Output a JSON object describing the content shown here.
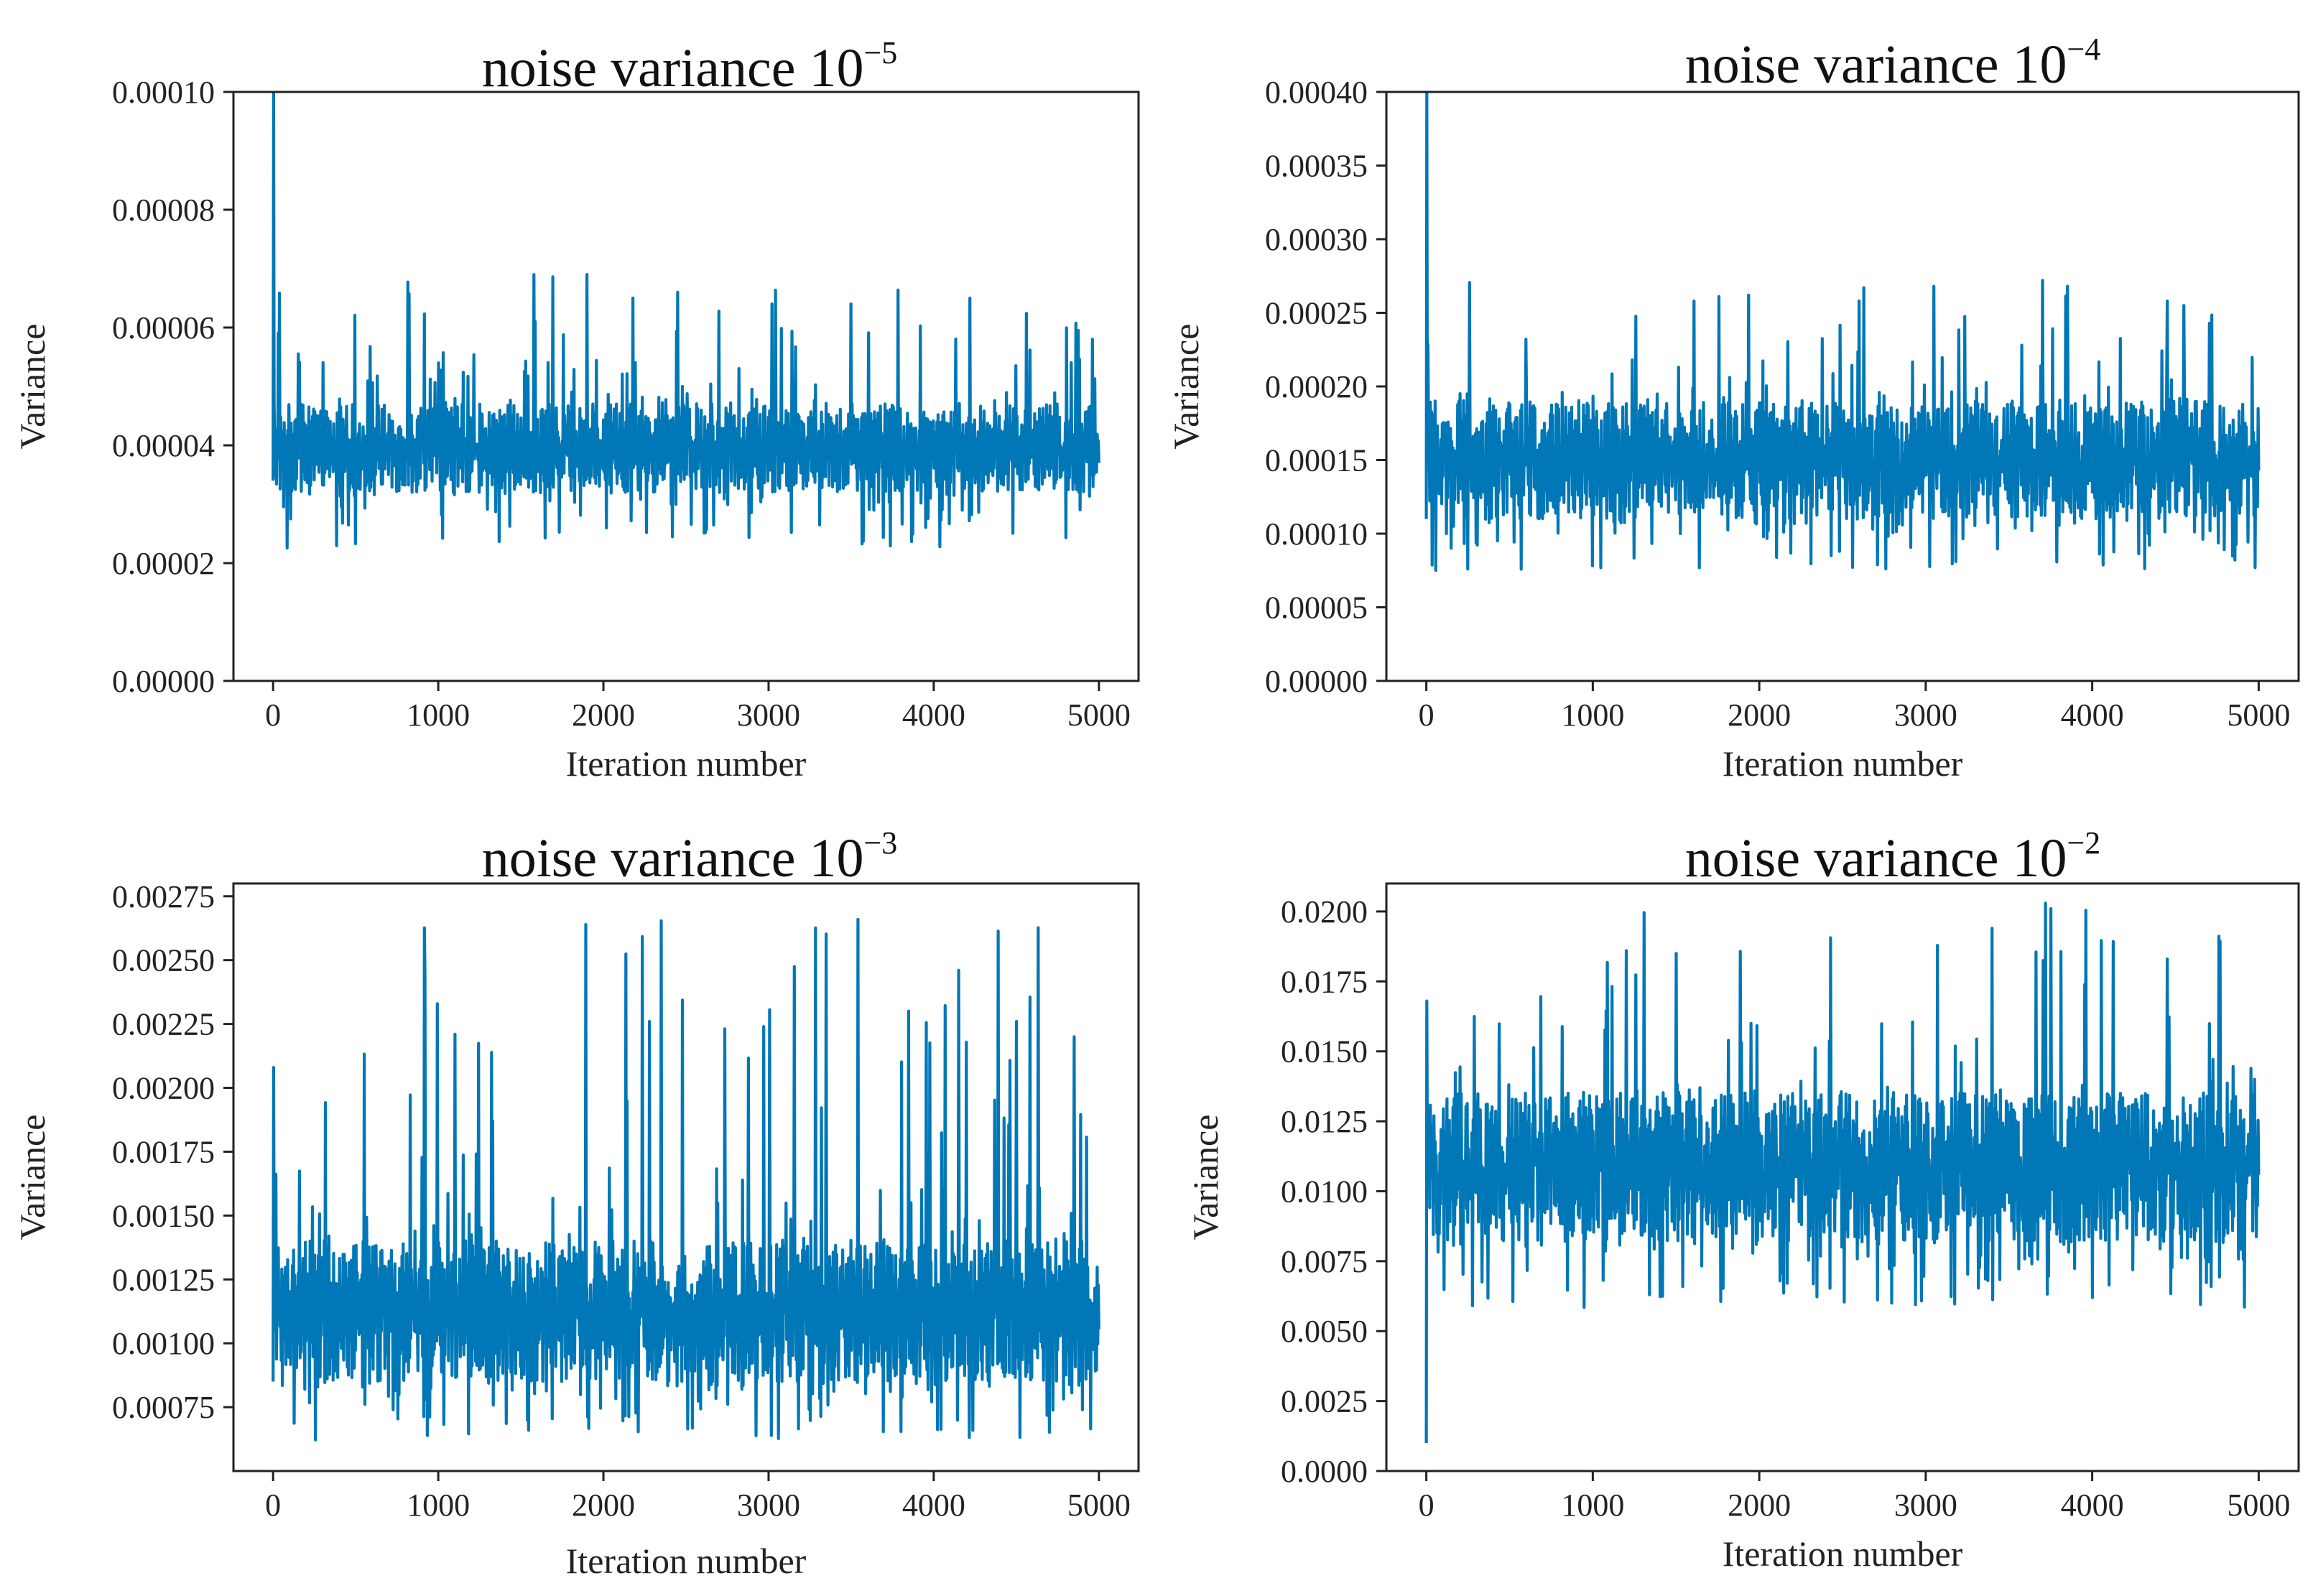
{
  "line_color": "#0077b6",
  "chart_data": [
    {
      "type": "line",
      "title": "noise  variance 10",
      "title_exponent": "−5",
      "xlabel": "Iteration number",
      "ylabel": "Variance",
      "xlim": [
        -240,
        5240
      ],
      "ylim": [
        0,
        0.0001
      ],
      "xticks": [
        0,
        1000,
        2000,
        3000,
        4000,
        5000
      ],
      "xtick_labels": [
        "0",
        "1000",
        "2000",
        "3000",
        "4000",
        "5000"
      ],
      "yticks": [
        0,
        2e-05,
        4e-05,
        6e-05,
        8e-05,
        0.0001
      ],
      "ytick_labels": [
        "0.00000",
        "0.00002",
        "0.00004",
        "0.00006",
        "0.00008",
        "0.00010"
      ],
      "series": [
        {
          "name": "variance",
          "x_range": [
            0,
            5000
          ],
          "initial_values": [
            3.4e-05,
            0.0001,
            4.7e-05
          ],
          "band_low": 3.2e-05,
          "band_high": 4.7e-05,
          "dips_min": 2.25e-05,
          "spike_max": 6.9e-05,
          "spikes": [
            [
              1580,
              6.9e-05
            ],
            [
              1900,
              6.9e-05
            ],
            [
              2180,
              6.5e-05
            ],
            [
              2450,
              6.6e-05
            ],
            [
              3020,
              6.4e-05
            ],
            [
              3500,
              6.4e-05
            ],
            [
              4220,
              6.5e-05
            ],
            [
              4960,
              5.8e-05
            ]
          ]
        }
      ]
    },
    {
      "type": "line",
      "title": "noise  variance 10",
      "title_exponent": "−4",
      "xlabel": "Iteration number",
      "ylabel": "Variance",
      "xlim": [
        -240,
        5240
      ],
      "ylim": [
        0,
        0.0004
      ],
      "xticks": [
        0,
        1000,
        2000,
        3000,
        4000,
        5000
      ],
      "xtick_labels": [
        "0",
        "1000",
        "2000",
        "3000",
        "4000",
        "5000"
      ],
      "yticks": [
        0,
        5e-05,
        0.0001,
        0.00015,
        0.0002,
        0.00025,
        0.0003,
        0.00035,
        0.0004
      ],
      "ytick_labels": [
        "0.00000",
        "0.00005",
        "0.00010",
        "0.00015",
        "0.00020",
        "0.00025",
        "0.00030",
        "0.00035",
        "0.00040"
      ],
      "series": [
        {
          "name": "variance",
          "x_range": [
            0,
            5000
          ],
          "initial_values": [
            0.00011,
            0.0004,
            0.00019
          ],
          "band_low": 0.00011,
          "band_high": 0.00019,
          "dips_min": 7.5e-05,
          "spike_max": 0.000272,
          "spikes": [
            [
              2600,
              0.000258
            ],
            [
              3050,
              0.000268
            ],
            [
              3700,
              0.000272
            ],
            [
              3850,
              0.000268
            ],
            [
              4450,
              0.000258
            ],
            [
              4550,
              0.000255
            ],
            [
              600,
              0.000232
            ]
          ]
        }
      ]
    },
    {
      "type": "line",
      "title": "noise  variance 10",
      "title_exponent": "−3",
      "xlabel": "Iteration number",
      "ylabel": "Variance",
      "xlim": [
        -240,
        5240
      ],
      "ylim": [
        0.0005,
        0.0028
      ],
      "xticks": [
        0,
        1000,
        2000,
        3000,
        4000,
        5000
      ],
      "xtick_labels": [
        "0",
        "1000",
        "2000",
        "3000",
        "4000",
        "5000"
      ],
      "yticks": [
        0.00075,
        0.001,
        0.00125,
        0.0015,
        0.00175,
        0.002,
        0.00225,
        0.0025,
        0.00275
      ],
      "ytick_labels": [
        "0.00075",
        "0.00100",
        "0.00125",
        "0.00150",
        "0.00175",
        "0.00200",
        "0.00225",
        "0.00250",
        "0.00275"
      ],
      "series": [
        {
          "name": "variance",
          "x_range": [
            0,
            5000
          ],
          "initial_values": [
            0.00085,
            0.00208,
            0.0014
          ],
          "band_low": 0.00085,
          "band_high": 0.0014,
          "dips_min": 0.00062,
          "spike_max": 0.00266,
          "spikes": [
            [
              920,
              0.00244
            ],
            [
              1100,
              0.00221
            ],
            [
              2280,
              0.00226
            ],
            [
              2970,
              0.00224
            ],
            [
              3540,
              0.00266
            ],
            [
              4150,
              0.00246
            ],
            [
              4500,
              0.00226
            ],
            [
              4850,
              0.0022
            ]
          ]
        }
      ]
    },
    {
      "type": "line",
      "title": "noise  variance 10",
      "title_exponent": "−2",
      "xlabel": "Iteration number",
      "ylabel": "Variance",
      "xlim": [
        -240,
        5240
      ],
      "ylim": [
        0,
        0.021
      ],
      "xticks": [
        0,
        1000,
        2000,
        3000,
        4000,
        5000
      ],
      "xtick_labels": [
        "0",
        "1000",
        "2000",
        "3000",
        "4000",
        "5000"
      ],
      "yticks": [
        0,
        0.0025,
        0.005,
        0.0075,
        0.01,
        0.0125,
        0.015,
        0.0175,
        0.02
      ],
      "ytick_labels": [
        "0.0000",
        "0.0025",
        "0.0050",
        "0.0075",
        "0.0100",
        "0.0125",
        "0.0150",
        "0.0175",
        "0.0200"
      ],
      "series": [
        {
          "name": "variance",
          "x_range": [
            0,
            5000
          ],
          "initial_values": [
            0.001,
            0.0168,
            0.012
          ],
          "band_low": 0.0082,
          "band_high": 0.0135,
          "dips_min": 0.0058,
          "spike_max": 0.0203,
          "spikes": [
            [
              1200,
              0.0186
            ],
            [
              1500,
              0.0185
            ],
            [
              3400,
              0.0194
            ],
            [
              3720,
              0.0203
            ],
            [
              3750,
              0.0201
            ],
            [
              4450,
              0.0183
            ]
          ]
        }
      ]
    }
  ]
}
